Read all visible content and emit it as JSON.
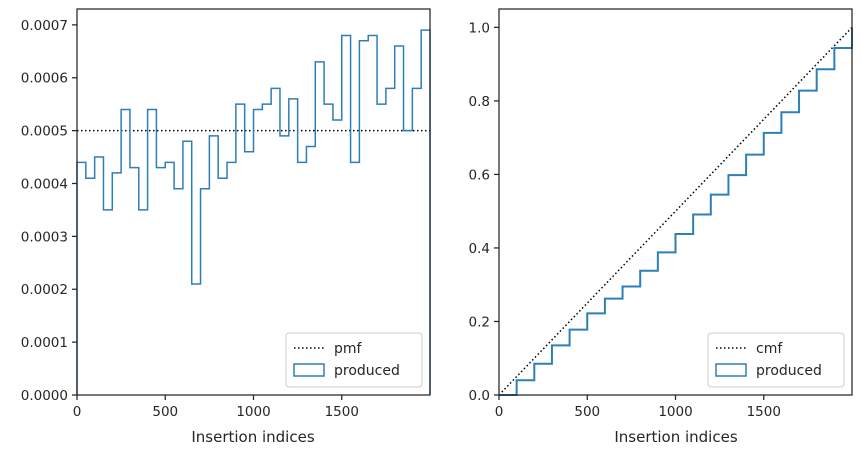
{
  "chart_data": [
    {
      "type": "step",
      "xlabel": "Insertion indices",
      "ylabel": "",
      "xlim": [
        0,
        2000
      ],
      "ylim": [
        0,
        0.00073
      ],
      "xticks": [
        0,
        500,
        1000,
        1500
      ],
      "xtick_labels": [
        "0",
        "500",
        "1000",
        "1500"
      ],
      "yticks": [
        0,
        0.0001,
        0.0002,
        0.0003,
        0.0004,
        0.0005,
        0.0006,
        0.0007
      ],
      "ytick_labels": [
        "0.0000",
        "0.0001",
        "0.0002",
        "0.0003",
        "0.0004",
        "0.0005",
        "0.0006",
        "0.0007"
      ],
      "legend_position": "lower-right",
      "series": [
        {
          "name": "pmf",
          "style": "dotted-line",
          "color": "#000000",
          "x": [
            0,
            2000
          ],
          "y": [
            0.0005,
            0.0005
          ]
        },
        {
          "name": "produced",
          "style": "step-histogram",
          "color": "#2d7fb8",
          "bin_edges": [
            0,
            50,
            100,
            150,
            200,
            250,
            300,
            350,
            400,
            450,
            500,
            550,
            600,
            650,
            700,
            750,
            800,
            850,
            900,
            950,
            1000,
            1050,
            1100,
            1150,
            1200,
            1250,
            1300,
            1350,
            1400,
            1450,
            1500,
            1550,
            1600,
            1650,
            1700,
            1750,
            1800,
            1850,
            1900,
            1950,
            2000
          ],
          "values": [
            0.00044,
            0.00041,
            0.00045,
            0.00035,
            0.00042,
            0.00054,
            0.00043,
            0.00035,
            0.00054,
            0.00043,
            0.00044,
            0.00039,
            0.00048,
            0.00021,
            0.00039,
            0.00049,
            0.00041,
            0.00044,
            0.00055,
            0.00046,
            0.00054,
            0.00055,
            0.00058,
            0.00049,
            0.00056,
            0.00044,
            0.00047,
            0.00063,
            0.00055,
            0.00052,
            0.00068,
            0.00044,
            0.00067,
            0.00068,
            0.00055,
            0.00058,
            0.00066,
            0.0005,
            0.00058,
            0.00069
          ]
        }
      ]
    },
    {
      "type": "line",
      "xlabel": "Insertion indices",
      "ylabel": "",
      "xlim": [
        0,
        2000
      ],
      "ylim": [
        0,
        1.05
      ],
      "xticks": [
        0,
        500,
        1000,
        1500
      ],
      "xtick_labels": [
        "0",
        "500",
        "1000",
        "1500"
      ],
      "yticks": [
        0,
        0.2,
        0.4,
        0.6,
        0.8,
        1.0
      ],
      "ytick_labels": [
        "0.0",
        "0.2",
        "0.4",
        "0.6",
        "0.8",
        "1.0"
      ],
      "legend_position": "lower-right",
      "series": [
        {
          "name": "cmf",
          "style": "dotted-line",
          "color": "#000000",
          "x": [
            0,
            2000
          ],
          "y": [
            0,
            1
          ]
        },
        {
          "name": "produced",
          "style": "step-line",
          "color": "#2d7fb8",
          "x": [
            0,
            100,
            200,
            300,
            400,
            500,
            600,
            700,
            800,
            900,
            1000,
            1100,
            1200,
            1300,
            1400,
            1500,
            1600,
            1700,
            1800,
            1900,
            2000
          ],
          "y": [
            0,
            0.04,
            0.085,
            0.135,
            0.178,
            0.222,
            0.262,
            0.295,
            0.338,
            0.388,
            0.438,
            0.491,
            0.545,
            0.598,
            0.654,
            0.713,
            0.769,
            0.828,
            0.886,
            0.944,
            1.0
          ]
        }
      ]
    }
  ]
}
